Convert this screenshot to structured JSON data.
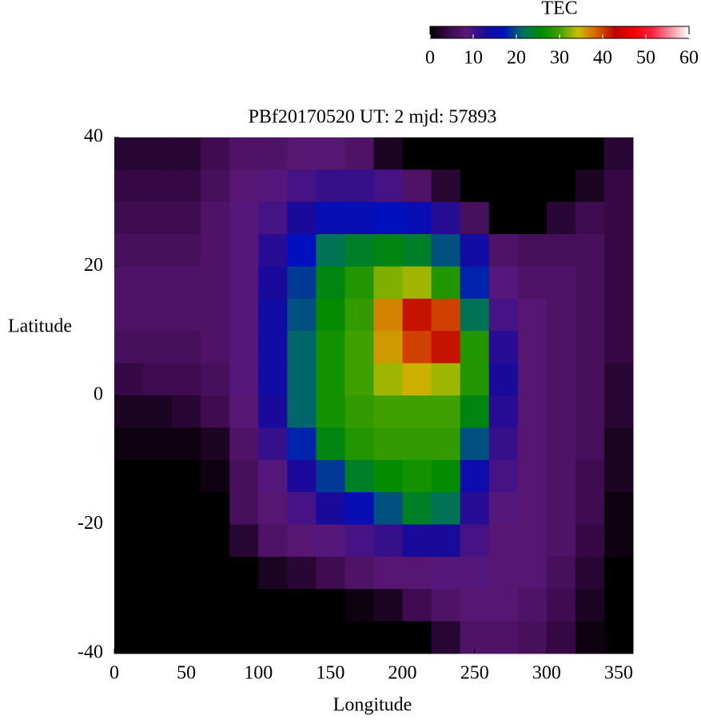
{
  "chart_data": {
    "type": "heatmap",
    "title": "PBf20170520  UT: 2  mjd: 57893",
    "x_label": "Longitude",
    "y_label": "Latitude",
    "x": [
      10,
      30,
      50,
      70,
      90,
      110,
      130,
      150,
      170,
      190,
      210,
      230,
      250,
      270,
      290,
      310,
      330,
      350
    ],
    "y": [
      37.5,
      32.5,
      27.5,
      22.5,
      17.5,
      12.5,
      7.5,
      2.5,
      -2.5,
      -7.5,
      -12.5,
      -17.5,
      -22.5,
      -27.5,
      -32.5,
      -37.5
    ],
    "values": [
      [
        3,
        3,
        3,
        5,
        7,
        7,
        8,
        8,
        7,
        2,
        0,
        0,
        0,
        0,
        0,
        0,
        0,
        3
      ],
      [
        4,
        4,
        4,
        6,
        8,
        9,
        10,
        11,
        11,
        10,
        7,
        3,
        0,
        0,
        0,
        0,
        2,
        4
      ],
      [
        5,
        5,
        5,
        7,
        9,
        10,
        13,
        16,
        16,
        17,
        16,
        12,
        6,
        0,
        0,
        3,
        5,
        4
      ],
      [
        6,
        6,
        6,
        7,
        9,
        12,
        17,
        22,
        24,
        25,
        24,
        20,
        14,
        7,
        6,
        6,
        6,
        4
      ],
      [
        7,
        7,
        7,
        7,
        9,
        13,
        19,
        25,
        28,
        32,
        33,
        28,
        18,
        9,
        7,
        7,
        6,
        4
      ],
      [
        7,
        7,
        7,
        7,
        9,
        14,
        20,
        26,
        29,
        37,
        42,
        40,
        22,
        10,
        8,
        7,
        6,
        4
      ],
      [
        6,
        6,
        6,
        7,
        9,
        14,
        21,
        27,
        30,
        36,
        40,
        42,
        28,
        12,
        8,
        7,
        6,
        4
      ],
      [
        4,
        5,
        5,
        6,
        9,
        14,
        21,
        27,
        30,
        33,
        35,
        33,
        28,
        13,
        8,
        7,
        6,
        3
      ],
      [
        2,
        2,
        3,
        5,
        8,
        13,
        21,
        27,
        29,
        30,
        30,
        30,
        25,
        12,
        8,
        7,
        6,
        3
      ],
      [
        1,
        1,
        1,
        2,
        7,
        11,
        18,
        25,
        28,
        29,
        29,
        29,
        20,
        11,
        8,
        7,
        6,
        2
      ],
      [
        0,
        0,
        0,
        1,
        6,
        9,
        13,
        19,
        24,
        26,
        27,
        26,
        15,
        10,
        8,
        7,
        5,
        2
      ],
      [
        0,
        0,
        0,
        0,
        6,
        8,
        10,
        13,
        16,
        20,
        24,
        22,
        12,
        9,
        8,
        7,
        5,
        1
      ],
      [
        0,
        0,
        0,
        0,
        3,
        7,
        8,
        9,
        10,
        11,
        13,
        13,
        10,
        8,
        8,
        7,
        4,
        1
      ],
      [
        0,
        0,
        0,
        0,
        0,
        2,
        3,
        5,
        7,
        8,
        8,
        9,
        9,
        8,
        8,
        6,
        3,
        0
      ],
      [
        0,
        0,
        0,
        0,
        0,
        0,
        0,
        0,
        1,
        2,
        5,
        7,
        8,
        8,
        7,
        5,
        2,
        0
      ],
      [
        0,
        0,
        0,
        0,
        0,
        0,
        0,
        0,
        0,
        0,
        0,
        3,
        7,
        7,
        6,
        4,
        1,
        0
      ]
    ],
    "xlim": [
      0,
      360
    ],
    "xticks": [
      0,
      50,
      100,
      150,
      200,
      250,
      300,
      350
    ],
    "ylim": [
      -40,
      40
    ],
    "yticks": [
      -40,
      -20,
      0,
      20,
      40
    ],
    "colorbar_label": "TEC",
    "zlim": [
      0,
      60
    ],
    "zticks": [
      0,
      10,
      20,
      30,
      40,
      50,
      60
    ],
    "colormap": [
      "#000000",
      "#3a0a4a",
      "#5a1878",
      "#1a0a9a",
      "#0010c0",
      "#007060",
      "#008a00",
      "#40a000",
      "#c8c000",
      "#d86000",
      "#c00000",
      "#f00000",
      "#ff2040",
      "#ff90a0",
      "#ffffff"
    ]
  }
}
